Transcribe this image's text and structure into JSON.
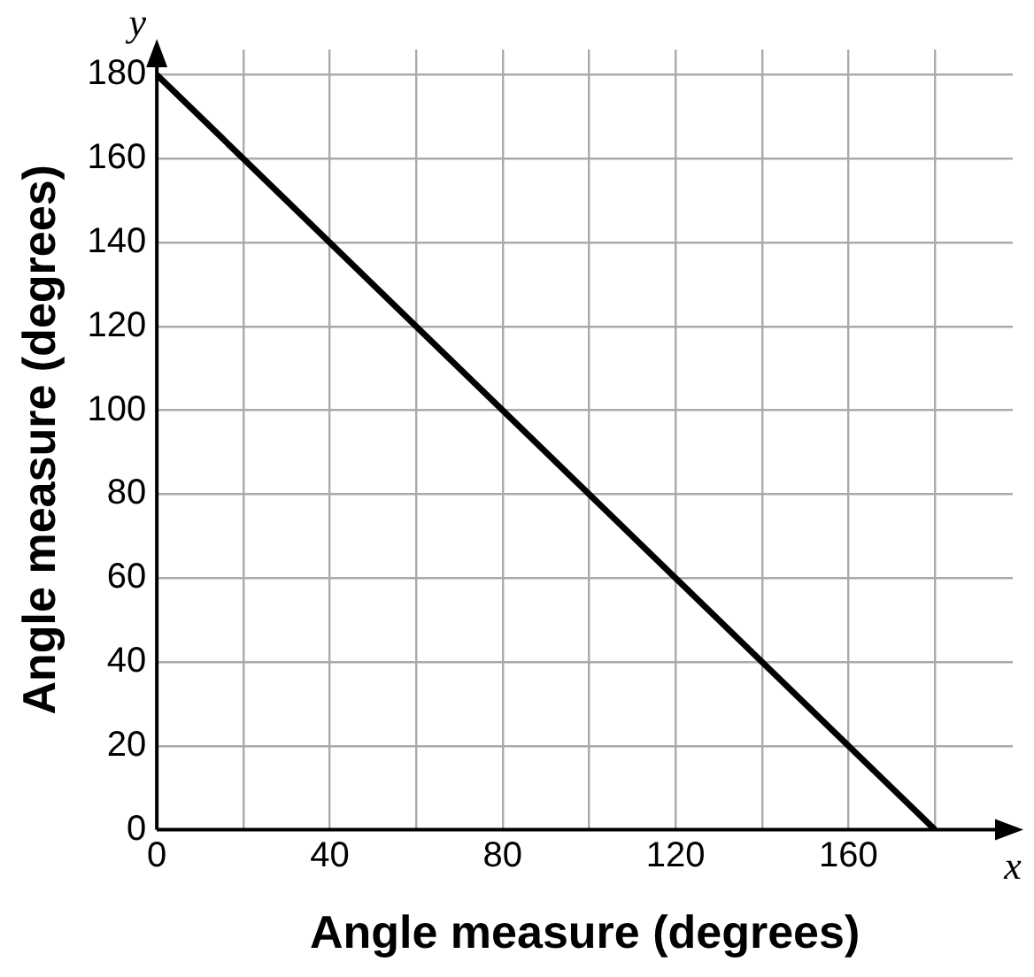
{
  "chart_data": {
    "type": "line",
    "xlabel": "Angle measure (degrees)",
    "ylabel": "Angle measure (degrees)",
    "x": [
      0,
      180
    ],
    "series": [
      {
        "color": "#000000",
        "values": [
          180,
          0
        ]
      }
    ],
    "xlim": [
      0,
      198
    ],
    "ylim": [
      0,
      186
    ],
    "xticks": [
      0,
      {
        "value": 20,
        "label": null
      },
      40,
      {
        "value": 60,
        "label": null
      },
      80,
      {
        "value": 100,
        "label": null
      },
      120,
      {
        "value": 140,
        "label": null
      },
      160,
      {
        "value": 180,
        "label": null
      }
    ],
    "yticks": [
      0,
      20,
      40,
      60,
      80,
      100,
      120,
      140,
      160,
      180
    ],
    "grid": true,
    "legend": false,
    "marker": "none",
    "line_style": "solid",
    "annotations": [
      "x",
      "y"
    ]
  }
}
